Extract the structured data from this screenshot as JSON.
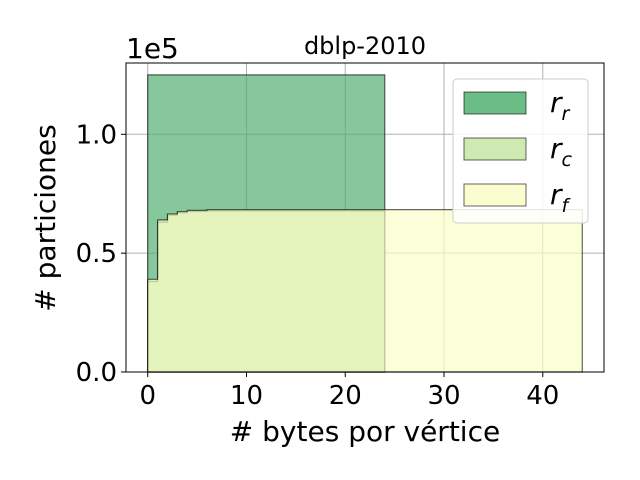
{
  "chart_data": {
    "type": "area",
    "title": "dblp-2010",
    "xlabel": "# bytes por vértice",
    "ylabel": "# particiones",
    "y_multiplier": "1e5",
    "xlim": [
      -2.2,
      46.2
    ],
    "ylim": [
      0,
      1.3
    ],
    "xticks": [
      0,
      10,
      20,
      30,
      40
    ],
    "xtick_labels": [
      "0",
      "10",
      "20",
      "30",
      "40"
    ],
    "yticks": [
      0.0,
      0.5,
      1.0
    ],
    "ytick_labels": [
      "0.0",
      "0.5",
      "1.0"
    ],
    "grid": true,
    "legend_position": "upper right",
    "series": [
      {
        "name": "r_r",
        "legend_base": "r",
        "legend_sub": "r",
        "color": "#52b070",
        "points": [
          [
            0,
            1.25
          ],
          [
            24,
            1.25
          ]
        ]
      },
      {
        "name": "r_c",
        "legend_base": "r",
        "legend_sub": "c",
        "color": "#c6e6a4",
        "points": [
          [
            0,
            0.38
          ],
          [
            1,
            0.63
          ],
          [
            2,
            0.66
          ],
          [
            3,
            0.67
          ],
          [
            4,
            0.675
          ],
          [
            6,
            0.678
          ],
          [
            24,
            0.678
          ]
        ]
      },
      {
        "name": "r_f",
        "legend_base": "r",
        "legend_sub": "f",
        "color": "#f9fdc8",
        "points": [
          [
            0,
            0.39
          ],
          [
            1,
            0.64
          ],
          [
            2,
            0.665
          ],
          [
            3,
            0.675
          ],
          [
            4,
            0.68
          ],
          [
            6,
            0.683
          ],
          [
            44,
            0.683
          ]
        ]
      }
    ]
  }
}
